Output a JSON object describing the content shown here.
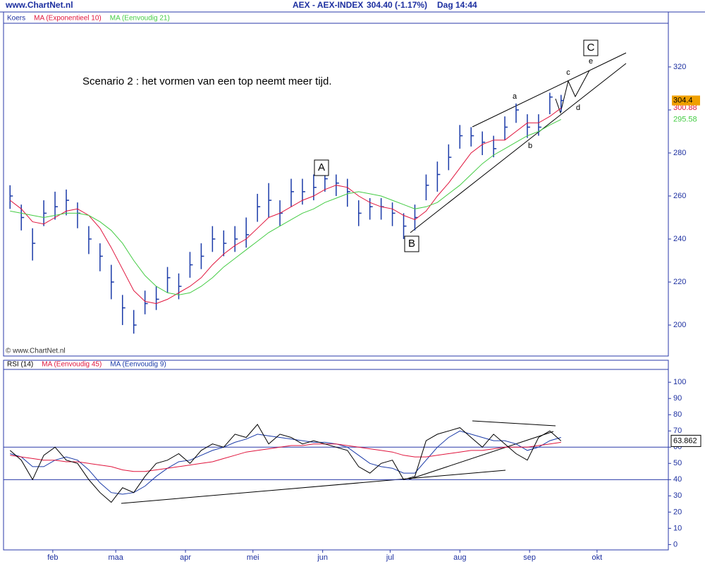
{
  "header": {
    "site": "www.ChartNet.nl",
    "title": "AEX - AEX-INDEX",
    "quote": "304.40 (-1.17%)",
    "time": "Dag  14:44"
  },
  "chart_data": [
    {
      "type": "ohlc",
      "name": "Koers",
      "bar_color": "#1a3aa8",
      "x": [
        12,
        17,
        22,
        27,
        32,
        37,
        42,
        47,
        52,
        57,
        62,
        67,
        72,
        77,
        82,
        87,
        92,
        97,
        102,
        107,
        112,
        117,
        122,
        127,
        132,
        137,
        142,
        147,
        152,
        157,
        162,
        167,
        172,
        177,
        182,
        187,
        192,
        197,
        202,
        207,
        212,
        217,
        222,
        227,
        232,
        237,
        242,
        247,
        252,
        257
      ],
      "high": [
        265,
        256,
        245,
        258,
        262,
        263,
        257,
        246,
        238,
        228,
        214,
        207,
        216,
        218,
        227,
        224,
        234,
        238,
        246,
        244,
        246,
        250,
        261,
        266,
        258,
        268,
        268,
        270,
        272,
        270,
        268,
        258,
        259,
        259,
        257,
        252,
        256,
        270,
        276,
        284,
        293,
        292,
        290,
        288,
        297,
        303,
        298,
        298,
        308,
        307
      ],
      "low": [
        254,
        244,
        230,
        246,
        249,
        251,
        245,
        233,
        225,
        212,
        200,
        196,
        205,
        207,
        215,
        212,
        222,
        226,
        234,
        232,
        234,
        236,
        248,
        250,
        246,
        255,
        256,
        258,
        262,
        260,
        255,
        246,
        249,
        249,
        246,
        240,
        244,
        258,
        262,
        272,
        282,
        283,
        279,
        278,
        286,
        294,
        287,
        288,
        298,
        299
      ],
      "close": [
        260,
        250,
        238,
        252,
        255,
        258,
        252,
        240,
        232,
        220,
        208,
        200,
        210,
        212,
        222,
        218,
        228,
        232,
        240,
        238,
        240,
        242,
        255,
        258,
        252,
        262,
        262,
        264,
        268,
        266,
        262,
        252,
        255,
        255,
        252,
        246,
        250,
        265,
        270,
        278,
        288,
        288,
        285,
        282,
        292,
        300,
        292,
        292,
        306,
        304.4
      ],
      "series": [
        {
          "name": "MA (Exponentieel 10)",
          "color": "#e0143c",
          "values": [
            258,
            254,
            248,
            247,
            250,
            253,
            254,
            251,
            245,
            236,
            226,
            216,
            211,
            210,
            212,
            215,
            218,
            222,
            228,
            233,
            237,
            240,
            245,
            250,
            252,
            255,
            258,
            260,
            263,
            265,
            264,
            260,
            257,
            255,
            254,
            251,
            249,
            253,
            260,
            266,
            273,
            280,
            284,
            286,
            286,
            290,
            294,
            294,
            297,
            300.88
          ]
        },
        {
          "name": "MA (Eenvoudig 21)",
          "color": "#44cc44",
          "values": [
            253,
            252,
            251,
            250,
            251,
            252,
            252,
            251,
            248,
            244,
            238,
            230,
            223,
            218,
            215,
            214,
            215,
            218,
            222,
            227,
            231,
            235,
            239,
            243,
            246,
            249,
            252,
            254,
            257,
            259,
            261,
            262,
            261,
            260,
            258,
            256,
            254,
            255,
            257,
            261,
            265,
            270,
            275,
            279,
            282,
            285,
            288,
            290,
            293,
            295.58
          ]
        }
      ],
      "xlim": [
        9.1,
        304.7
      ],
      "ylim": [
        185.6,
        340.3
      ],
      "yticks": [
        200,
        220,
        240,
        260,
        280,
        300,
        320
      ],
      "annotations": [
        "Scenario 2 : het vormen van een top neemt meer tijd.",
        "A",
        "B",
        "C",
        "a",
        "b",
        "c",
        "d",
        "e"
      ],
      "watermark": "© www.ChartNet.nl"
    },
    {
      "type": "line",
      "x": [
        12,
        17,
        22,
        27,
        32,
        37,
        42,
        47,
        52,
        57,
        62,
        67,
        72,
        77,
        82,
        87,
        92,
        97,
        102,
        107,
        112,
        117,
        122,
        127,
        132,
        137,
        142,
        147,
        152,
        157,
        162,
        167,
        172,
        177,
        182,
        187,
        192,
        197,
        202,
        207,
        212,
        217,
        222,
        227,
        232,
        237,
        242,
        247,
        252,
        257
      ],
      "series": [
        {
          "name": "RSI (14)",
          "color": "#000000",
          "values": [
            58,
            52,
            40,
            55,
            60,
            52,
            50,
            40,
            32,
            26,
            35,
            32,
            42,
            50,
            52,
            56,
            50,
            58,
            62,
            60,
            68,
            66,
            74,
            62,
            68,
            66,
            62,
            64,
            62,
            60,
            58,
            48,
            44,
            50,
            52,
            40,
            42,
            64,
            68,
            70,
            72,
            66,
            60,
            68,
            62,
            56,
            52,
            66,
            70,
            63.862
          ]
        },
        {
          "name": "MA (Eenvoudig 45)",
          "color": "#e0143c",
          "values": [
            55,
            54,
            53,
            52,
            52,
            51,
            51,
            50,
            49,
            48,
            46,
            45,
            45,
            46,
            47,
            48,
            49,
            50,
            51,
            53,
            55,
            57,
            58,
            59,
            60,
            61,
            61,
            62,
            62,
            62,
            61,
            60,
            59,
            58,
            57,
            55,
            54,
            54,
            55,
            56,
            57,
            58,
            58,
            59,
            60,
            60,
            60,
            61,
            62,
            63
          ]
        },
        {
          "name": "MA (Eenvoudig 9)",
          "color": "#1a3aa8",
          "values": [
            56,
            54,
            48,
            48,
            52,
            54,
            52,
            46,
            38,
            32,
            31,
            32,
            36,
            42,
            47,
            51,
            52,
            55,
            58,
            60,
            63,
            65,
            68,
            67,
            66,
            65,
            64,
            63,
            63,
            62,
            60,
            55,
            50,
            48,
            47,
            44,
            44,
            52,
            60,
            66,
            70,
            68,
            66,
            64,
            64,
            62,
            58,
            60,
            64,
            66
          ]
        }
      ],
      "hlines": [
        40,
        60
      ],
      "xlim": [
        9.1,
        304.7
      ],
      "ylim": [
        -3.3,
        107.9
      ],
      "yticks": [
        0,
        10,
        20,
        30,
        40,
        50,
        60,
        70,
        80,
        90,
        100
      ],
      "xticks": [
        {
          "value": 31,
          "label": "feb"
        },
        {
          "value": 59,
          "label": "maa"
        },
        {
          "value": 90,
          "label": "apr"
        },
        {
          "value": 120,
          "label": "mei"
        },
        {
          "value": 151,
          "label": "jun"
        },
        {
          "value": 181,
          "label": "jul"
        },
        {
          "value": 212,
          "label": "aug"
        },
        {
          "value": 243,
          "label": "sep"
        },
        {
          "value": 273,
          "label": "okt"
        }
      ]
    }
  ]
}
